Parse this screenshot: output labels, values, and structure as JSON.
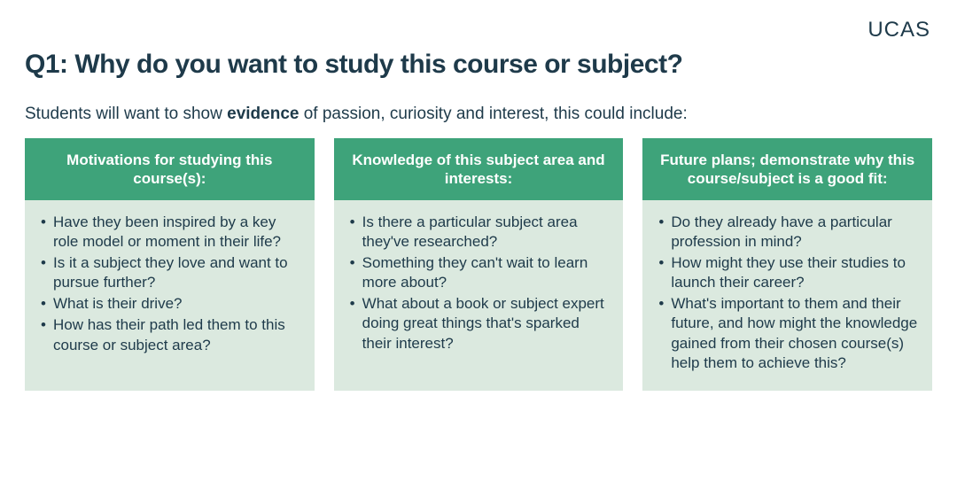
{
  "logo_text": "UCAS",
  "title": "Q1: Why do you want to study this course or subject?",
  "subtitle_before": "Students will want to show ",
  "subtitle_bold": "evidence",
  "subtitle_after": " of passion, curiosity and interest, this could include:",
  "colors": {
    "header_bg": "#3ea37a",
    "body_bg": "#dbe9df",
    "text": "#1e3a4a",
    "page_bg": "#ffffff"
  },
  "columns": [
    {
      "header": "Motivations for studying this course(s):",
      "items": [
        "Have they been inspired by a key role model or moment in their life?",
        "Is it a subject they love and want to pursue further?",
        "What is their drive?",
        "How has their path led them to this course or subject area?"
      ]
    },
    {
      "header": "Knowledge of this subject area and interests:",
      "items": [
        "Is there a particular subject area they've researched?",
        "Something they can't wait to learn more about?",
        "What about a book or subject expert doing great things that's sparked their interest?"
      ]
    },
    {
      "header": "Future plans; demonstrate why this course/subject is a good fit:",
      "items": [
        "Do they already have a particular profession in mind?",
        "How might they use their studies to launch their career?",
        "What's important to them and their future, and how might the knowledge gained from their chosen course(s) help them to achieve this?"
      ]
    }
  ]
}
